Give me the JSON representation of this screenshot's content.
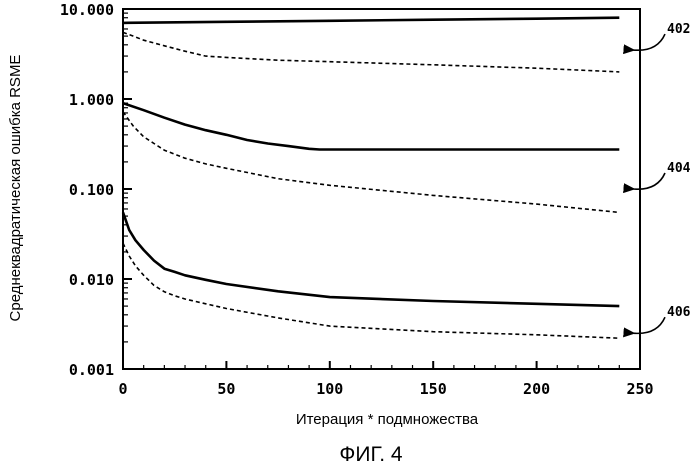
{
  "chart_data": {
    "type": "line",
    "title": "",
    "xlabel": "Итерация * подмножества",
    "ylabel": "Среднеквадратическая ошибка RSME",
    "caption": "ФИГ. 4",
    "xlim": [
      0,
      250
    ],
    "ylim": [
      0.001,
      10.0
    ],
    "yscale": "log",
    "xticks": [
      0,
      50,
      100,
      150,
      200,
      250
    ],
    "xtick_labels": [
      "0",
      "50",
      "100",
      "150",
      "200",
      "250"
    ],
    "yticks": [
      0.001,
      0.01,
      0.1,
      1.0,
      10.0
    ],
    "ytick_labels": [
      "0.001",
      "0.010",
      "0.100",
      "1.000",
      "10.000"
    ],
    "annotations": [
      {
        "label": "402",
        "x": 242,
        "y": 3.5
      },
      {
        "label": "404",
        "x": 242,
        "y": 0.1
      },
      {
        "label": "406",
        "x": 242,
        "y": 0.0025
      }
    ],
    "series": [
      {
        "name": "402-solid",
        "style": "solid",
        "x": [
          0,
          50,
          100,
          150,
          200,
          240
        ],
        "y": [
          7.0,
          7.2,
          7.4,
          7.6,
          7.8,
          8.0
        ]
      },
      {
        "name": "402-dashed",
        "style": "dashed",
        "x": [
          0,
          5,
          10,
          20,
          30,
          40,
          50,
          75,
          100,
          150,
          200,
          240
        ],
        "y": [
          5.5,
          5.0,
          4.5,
          3.9,
          3.4,
          3.0,
          2.9,
          2.7,
          2.6,
          2.4,
          2.2,
          2.0
        ]
      },
      {
        "name": "404-solid",
        "style": "solid",
        "x": [
          0,
          10,
          20,
          30,
          40,
          50,
          60,
          70,
          80,
          90,
          95,
          100,
          150,
          200,
          240
        ],
        "y": [
          0.9,
          0.75,
          0.62,
          0.52,
          0.45,
          0.4,
          0.35,
          0.32,
          0.3,
          0.28,
          0.275,
          0.275,
          0.275,
          0.275,
          0.275
        ]
      },
      {
        "name": "404-dashed",
        "style": "dashed",
        "x": [
          0,
          5,
          10,
          15,
          20,
          30,
          40,
          50,
          75,
          100,
          150,
          200,
          240
        ],
        "y": [
          0.72,
          0.5,
          0.38,
          0.32,
          0.27,
          0.22,
          0.19,
          0.17,
          0.13,
          0.11,
          0.085,
          0.068,
          0.055
        ]
      },
      {
        "name": "406-solid",
        "style": "solid",
        "x": [
          0,
          3,
          6,
          10,
          15,
          20,
          25,
          30,
          40,
          50,
          75,
          100,
          150,
          200,
          240
        ],
        "y": [
          0.055,
          0.035,
          0.027,
          0.021,
          0.016,
          0.013,
          0.012,
          0.011,
          0.0098,
          0.0088,
          0.0073,
          0.0063,
          0.0057,
          0.0053,
          0.005
        ]
      },
      {
        "name": "406-dashed",
        "style": "dashed",
        "x": [
          0,
          3,
          6,
          10,
          15,
          20,
          25,
          30,
          40,
          50,
          75,
          100,
          150,
          200,
          240
        ],
        "y": [
          0.025,
          0.018,
          0.014,
          0.011,
          0.0085,
          0.0072,
          0.0065,
          0.006,
          0.0053,
          0.0047,
          0.0037,
          0.003,
          0.0026,
          0.0024,
          0.0022
        ]
      }
    ]
  }
}
